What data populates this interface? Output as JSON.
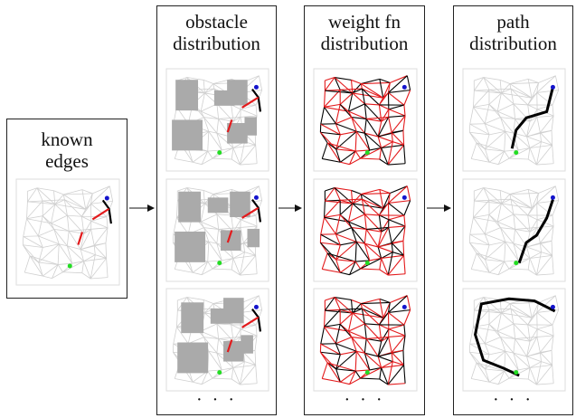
{
  "panels": [
    {
      "title_line1": "known",
      "title_line2": "edges"
    },
    {
      "title_line1": "obstacle",
      "title_line2": "distribution",
      "ellipsis": "· · ·"
    },
    {
      "title_line1": "weight fn",
      "title_line2": "distribution",
      "ellipsis": "· · ·"
    },
    {
      "title_line1": "path",
      "title_line2": "distribution",
      "ellipsis": "· · ·"
    }
  ],
  "colors": {
    "light_edge": "#d0d0d0",
    "known_edge": "#e31a1c",
    "obstacle": "#aaaaaa",
    "start_dot": "#22dd22",
    "goal_dot": "#1414cc",
    "path": "#000000",
    "border": "#222222"
  }
}
